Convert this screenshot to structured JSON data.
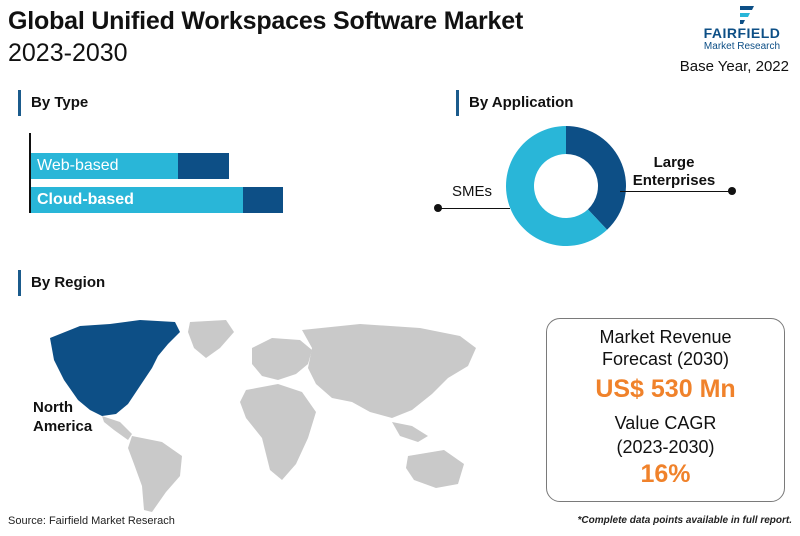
{
  "header": {
    "title": "Global Unified Workspaces Software Market",
    "subtitle": "2023-2030",
    "base_year": "Base Year, 2022"
  },
  "logo": {
    "name": "FAIRFIELD",
    "tagline": "Market Research",
    "icon": "fairfield-logo-icon"
  },
  "sections": {
    "by_type": "By Type",
    "by_application": "By Application",
    "by_region": "By Region"
  },
  "type_bars": [
    {
      "label": "Web-based",
      "light_fraction": 0.74,
      "dark_fraction": 0.26
    },
    {
      "label": "Cloud-based",
      "light_fraction": 0.84,
      "dark_fraction": 0.16
    }
  ],
  "application": {
    "segments": [
      {
        "label": "Large Enterprises",
        "share": 0.38,
        "color": "#0d4f86"
      },
      {
        "label": "SMEs",
        "share": 0.62,
        "color": "#29b6d8"
      }
    ]
  },
  "region": {
    "highlight": "North America",
    "highlight_color": "#0d4f86",
    "other_color": "#c9c9c9"
  },
  "stats": {
    "revenue_label": "Market Revenue Forecast (2030)",
    "revenue_value": "US$ 530 Mn",
    "cagr_label": "Value CAGR (2023-2030)",
    "cagr_value": "16%"
  },
  "footer": {
    "source": "Source: Fairfield Market Reserach",
    "note": "*Complete data points available in full report."
  },
  "colors": {
    "accent_light": "#29b6d8",
    "accent_dark": "#0d4f86",
    "highlight_orange": "#f0822b"
  }
}
